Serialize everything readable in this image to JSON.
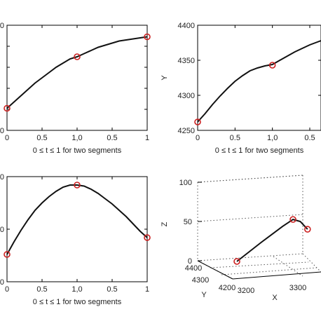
{
  "chart_data": [
    {
      "id": "p1",
      "type": "line",
      "xlabel": "0 ≤ t ≤ 1 for two segments",
      "ylabel": "",
      "xlim": [
        0,
        1
      ],
      "x_ticks": [
        "0",
        "0.5",
        "1,0",
        "0.5",
        "1"
      ],
      "y_ticks": [
        "0",
        "",
        "",
        "",
        "",
        "0"
      ],
      "series_x": [
        0,
        0.1,
        0.2,
        0.3,
        0.4,
        0.5,
        0.6,
        0.7,
        0.8,
        0.9,
        1.0,
        1.1,
        1.2,
        1.3,
        1.4,
        1.5,
        1.6,
        1.7,
        1.8,
        1.9,
        2.0
      ],
      "series_y": [
        0.21,
        0.27,
        0.33,
        0.39,
        0.45,
        0.5,
        0.55,
        0.6,
        0.64,
        0.68,
        0.7,
        0.73,
        0.76,
        0.79,
        0.81,
        0.83,
        0.85,
        0.86,
        0.87,
        0.88,
        0.89
      ],
      "knots": [
        [
          0,
          0.21
        ],
        [
          1.0,
          0.7
        ],
        [
          2.0,
          0.89
        ]
      ],
      "ylim": [
        0,
        1
      ]
    },
    {
      "id": "p2",
      "type": "line",
      "xlabel": "0 ≤ t ≤ 1 for two segments",
      "ylabel": "Y",
      "xlim": [
        0,
        1.65
      ],
      "ylim": [
        4250,
        4400
      ],
      "x_ticks": [
        "0",
        "0.5",
        "1,0",
        "0.5"
      ],
      "y_ticks": [
        "4250",
        "4300",
        "4350",
        "4400"
      ],
      "series_x": [
        0,
        0.1,
        0.2,
        0.3,
        0.4,
        0.5,
        0.6,
        0.7,
        0.8,
        0.9,
        1.0,
        1.1,
        1.2,
        1.3,
        1.4,
        1.5,
        1.6,
        1.65
      ],
      "series_y": [
        4262,
        4274,
        4287,
        4299,
        4310,
        4320,
        4328,
        4335,
        4339,
        4342,
        4344,
        4350,
        4356,
        4362,
        4367,
        4372,
        4376,
        4378
      ],
      "knots": [
        [
          0,
          4262
        ],
        [
          1.0,
          4343
        ]
      ]
    },
    {
      "id": "p3",
      "type": "line",
      "xlabel": "0 ≤ t ≤ 1 for two segments",
      "ylabel": "",
      "xlim": [
        0,
        2
      ],
      "ylim": [
        0,
        1
      ],
      "x_ticks": [
        "0",
        "0.5",
        "1,0",
        "0.5",
        "1"
      ],
      "y_ticks": [
        "0",
        "0",
        "0"
      ],
      "series_x": [
        0,
        0.1,
        0.2,
        0.3,
        0.4,
        0.5,
        0.6,
        0.7,
        0.8,
        0.9,
        1.0,
        1.1,
        1.2,
        1.3,
        1.4,
        1.5,
        1.6,
        1.7,
        1.8,
        1.9,
        2.0
      ],
      "series_y": [
        0.26,
        0.38,
        0.49,
        0.59,
        0.68,
        0.75,
        0.81,
        0.86,
        0.9,
        0.92,
        0.92,
        0.91,
        0.88,
        0.84,
        0.79,
        0.74,
        0.68,
        0.62,
        0.55,
        0.48,
        0.42
      ],
      "knots": [
        [
          0,
          0.26
        ],
        [
          1.0,
          0.92
        ],
        [
          2.0,
          0.42
        ]
      ]
    },
    {
      "id": "p4",
      "type": "line",
      "subtype": "3d",
      "xlabel": "X",
      "ylabel": "Y",
      "zlabel": "Z",
      "z_ticks": [
        "0",
        "50",
        "100"
      ],
      "x_ticks": [
        "3200",
        "3300"
      ],
      "y_ticks": [
        "4400",
        "4300",
        "4200"
      ],
      "points_xyz": [
        [
          3210,
          4262,
          0
        ],
        [
          3245,
          4300,
          22
        ],
        [
          3275,
          4330,
          40
        ],
        [
          3290,
          4343,
          48
        ],
        [
          3300,
          4360,
          45
        ],
        [
          3310,
          4378,
          35
        ]
      ],
      "knots_xyz": [
        [
          3210,
          4262,
          0
        ],
        [
          3290,
          4343,
          48
        ],
        [
          3310,
          4378,
          35
        ]
      ]
    }
  ],
  "colors": {
    "line": "#111111",
    "marker": "#cc1f1f",
    "grid": "#555555",
    "axis": "#000000"
  }
}
